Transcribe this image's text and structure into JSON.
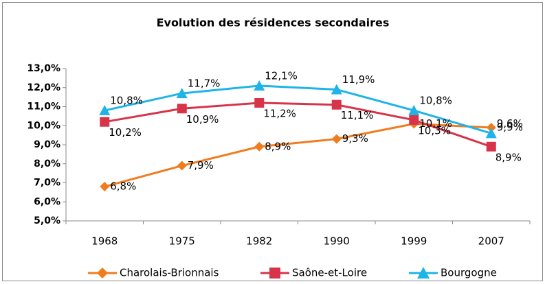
{
  "chart_data": {
    "type": "line",
    "title": "Evolution des résidences secondaires",
    "categories": [
      "1968",
      "1975",
      "1982",
      "1990",
      "1999",
      "2007"
    ],
    "series": [
      {
        "name": "Charolais-Brionnais",
        "color": "#f07c1e",
        "marker": "diamond",
        "values": [
          6.8,
          7.9,
          8.9,
          9.3,
          10.1,
          9.9
        ],
        "value_labels": [
          "6,8%",
          "7,9%",
          "8,9%",
          "9,3%",
          "10,1%",
          "9,9%"
        ]
      },
      {
        "name": "Saône-et-Loire",
        "color": "#d7344a",
        "marker": "square",
        "values": [
          10.2,
          10.9,
          11.2,
          11.1,
          10.3,
          8.9
        ],
        "value_labels": [
          "10,2%",
          "10,9%",
          "11,2%",
          "11,1%",
          "10,3%",
          "8,9%"
        ]
      },
      {
        "name": "Bourgogne",
        "color": "#1eb4e8",
        "marker": "triangle",
        "values": [
          10.8,
          11.7,
          12.1,
          11.9,
          10.8,
          9.6
        ],
        "value_labels": [
          "10,8%",
          "11,7%",
          "12,1%",
          "11,9%",
          "10,8%",
          "9,6%"
        ]
      }
    ],
    "ylim": [
      5,
      13
    ],
    "yticks": [
      {
        "value": 5,
        "label": "5,0%"
      },
      {
        "value": 6,
        "label": "6,0%"
      },
      {
        "value": 7,
        "label": "7,0%"
      },
      {
        "value": 8,
        "label": "8,0%"
      },
      {
        "value": 9,
        "label": "9,0%"
      },
      {
        "value": 10,
        "label": "10,0%"
      },
      {
        "value": 11,
        "label": "11,0%"
      },
      {
        "value": 12,
        "label": "12,0%"
      },
      {
        "value": 13,
        "label": "13,0%"
      }
    ],
    "legend": "bottom"
  }
}
